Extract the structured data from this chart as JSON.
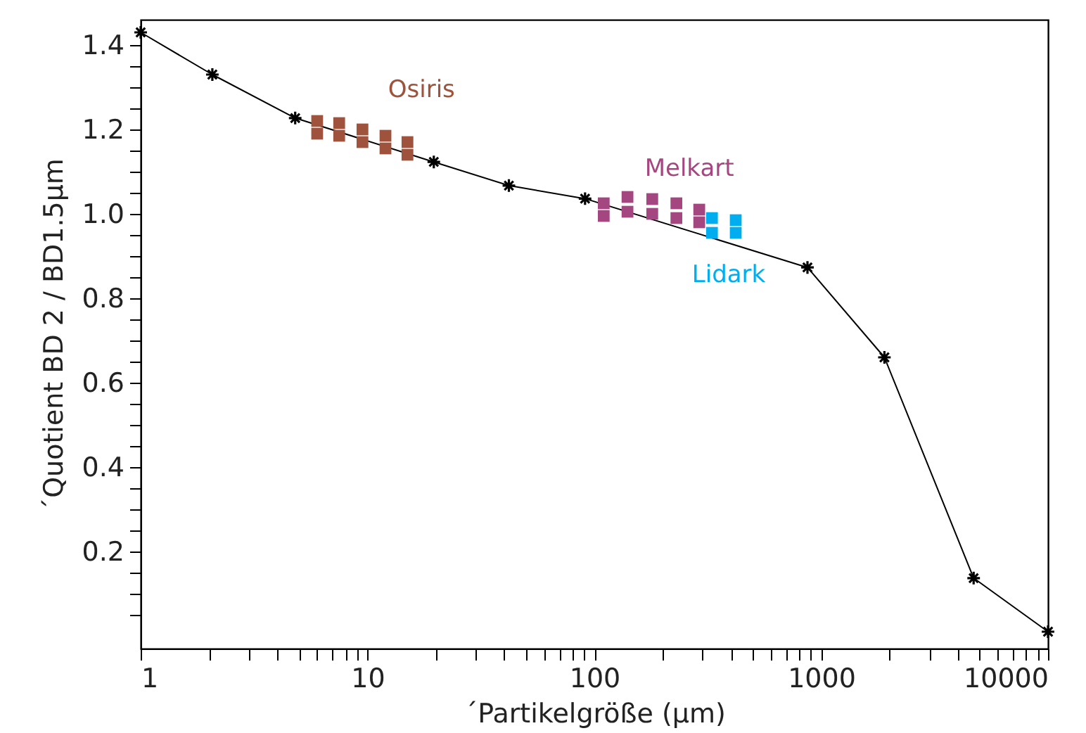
{
  "chart_data": {
    "type": "line",
    "xlabel": "´Partikelgröße (µm)",
    "ylabel": "´Quotient BD 2 / BD1.5µm",
    "log": "x",
    "xlim": [
      1,
      10000
    ],
    "ylim": [
      -0.03,
      1.46
    ],
    "xticks": [
      1,
      {
        "value": 2,
        "label": null
      },
      {
        "value": 3,
        "label": null
      },
      {
        "value": 4,
        "label": null
      },
      {
        "value": 5,
        "label": null
      },
      {
        "value": 6,
        "label": null
      },
      {
        "value": 7,
        "label": null
      },
      {
        "value": 8,
        "label": null
      },
      {
        "value": 9,
        "label": null
      },
      10,
      {
        "value": 20,
        "label": null
      },
      {
        "value": 30,
        "label": null
      },
      {
        "value": 40,
        "label": null
      },
      {
        "value": 50,
        "label": null
      },
      {
        "value": 60,
        "label": null
      },
      {
        "value": 70,
        "label": null
      },
      {
        "value": 80,
        "label": null
      },
      {
        "value": 90,
        "label": null
      },
      100,
      {
        "value": 200,
        "label": null
      },
      {
        "value": 300,
        "label": null
      },
      {
        "value": 400,
        "label": null
      },
      {
        "value": 500,
        "label": null
      },
      {
        "value": 600,
        "label": null
      },
      {
        "value": 700,
        "label": null
      },
      {
        "value": 800,
        "label": null
      },
      {
        "value": 900,
        "label": null
      },
      1000,
      {
        "value": 2000,
        "label": null
      },
      {
        "value": 3000,
        "label": null
      },
      {
        "value": 4000,
        "label": null
      },
      {
        "value": 5000,
        "label": null
      },
      {
        "value": 6000,
        "label": null
      },
      {
        "value": 7000,
        "label": null
      },
      {
        "value": 8000,
        "label": null
      },
      {
        "value": 9000,
        "label": null
      },
      10000
    ],
    "yticks": [
      {
        "value": 0.05,
        "label": null
      },
      {
        "value": 0.1,
        "label": null
      },
      {
        "value": 0.15,
        "label": null
      },
      0.2,
      {
        "value": 0.25,
        "label": null
      },
      {
        "value": 0.3,
        "label": null
      },
      {
        "value": 0.35,
        "label": null
      },
      0.4,
      {
        "value": 0.45,
        "label": null
      },
      {
        "value": 0.5,
        "label": null
      },
      {
        "value": 0.55,
        "label": null
      },
      0.6,
      {
        "value": 0.65,
        "label": null
      },
      {
        "value": 0.7,
        "label": null
      },
      {
        "value": 0.75,
        "label": null
      },
      0.8,
      {
        "value": 0.85,
        "label": null
      },
      {
        "value": 0.9,
        "label": null
      },
      {
        "value": 0.95,
        "label": null
      },
      {
        "value": 1.0,
        "label": "1.0"
      },
      {
        "value": 1.05,
        "label": null
      },
      {
        "value": 1.1,
        "label": null
      },
      {
        "value": 1.15,
        "label": null
      },
      1.2,
      {
        "value": 1.25,
        "label": null
      },
      {
        "value": 1.3,
        "label": null
      },
      {
        "value": 1.35,
        "label": null
      },
      1.4
    ],
    "grid": false,
    "legend": false,
    "series": [
      {
        "color": "#000000",
        "marker": "cross",
        "x": [
          1,
          2.07,
          4.8,
          19.6,
          42,
          91,
          870,
          1900,
          4700,
          10000
        ],
        "values": [
          1.43,
          1.33,
          1.227,
          1.123,
          1.067,
          1.036,
          0.873,
          0.66,
          0.137,
          0.01
        ]
      },
      {
        "type": "scatter",
        "name": "Osiris",
        "color": "#a0533c",
        "marker": "square",
        "x": [
          6,
          6,
          7.5,
          7.5,
          9.5,
          9.5,
          12,
          12,
          15,
          15
        ],
        "values": [
          1.22,
          1.19,
          1.215,
          1.185,
          1.2,
          1.17,
          1.185,
          1.155,
          1.17,
          1.14
        ]
      },
      {
        "type": "scatter",
        "name": "Melkart",
        "color": "#a4467f",
        "marker": "square",
        "x": [
          110,
          110,
          140,
          140,
          180,
          180,
          230,
          230,
          290,
          290
        ],
        "values": [
          1.025,
          0.995,
          1.04,
          1.005,
          1.035,
          1.0,
          1.025,
          0.99,
          1.01,
          0.98
        ]
      },
      {
        "type": "scatter",
        "name": "Lidark",
        "color": "#00aeef",
        "marker": "square",
        "x": [
          330,
          330,
          420,
          420
        ],
        "values": [
          0.99,
          0.955,
          0.985,
          0.955
        ]
      }
    ]
  }
}
